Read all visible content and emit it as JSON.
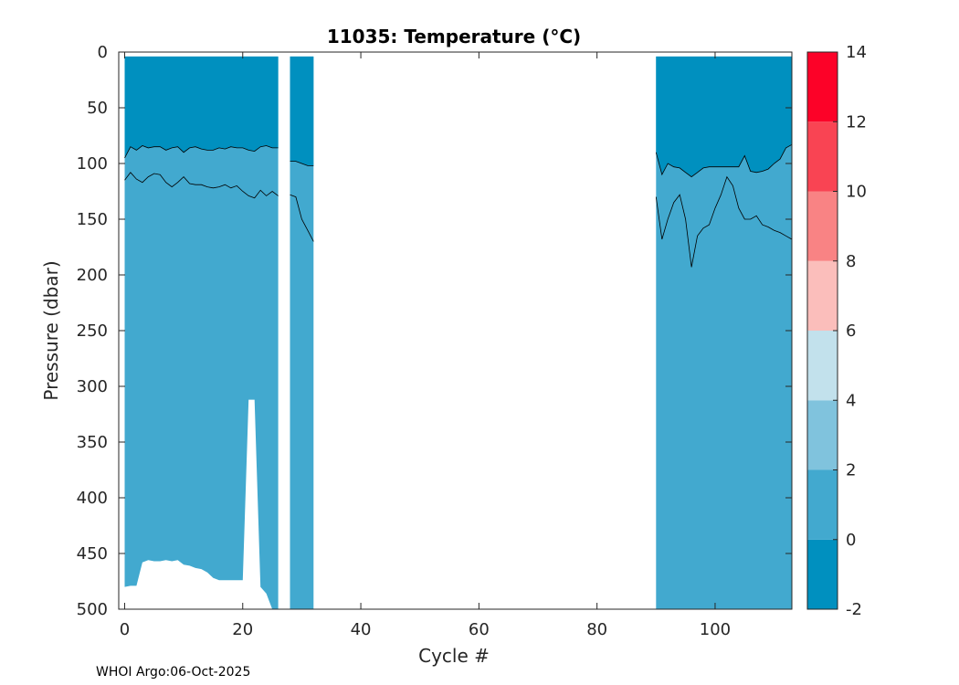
{
  "chart_data": {
    "type": "heatmap",
    "title": "11035:  Temperature (°C)",
    "xlabel": "Cycle #",
    "ylabel": "Pressure (dbar)",
    "xlim": [
      -1,
      113
    ],
    "ylim": [
      500,
      0
    ],
    "xticks": [
      0,
      20,
      40,
      60,
      80,
      100
    ],
    "yticks": [
      0,
      50,
      100,
      150,
      200,
      250,
      300,
      350,
      400,
      450,
      500
    ],
    "colorbar": {
      "range": [
        -2,
        14
      ],
      "ticks": [
        -2,
        0,
        2,
        4,
        6,
        8,
        10,
        12,
        14
      ],
      "levels": [
        {
          "from": -2,
          "to": 0,
          "color": "#0090bf"
        },
        {
          "from": 0,
          "to": 2,
          "color": "#42a9cf"
        },
        {
          "from": 2,
          "to": 4,
          "color": "#80c3dd"
        },
        {
          "from": 4,
          "to": 6,
          "color": "#c2e1ec"
        },
        {
          "from": 6,
          "to": 8,
          "color": "#fbbebb"
        },
        {
          "from": 8,
          "to": 10,
          "color": "#f98384"
        },
        {
          "from": 10,
          "to": 12,
          "color": "#f94453"
        },
        {
          "from": 12,
          "to": 14,
          "color": "#fc0228"
        }
      ]
    },
    "data_blocks": [
      {
        "cycles": [
          0,
          26
        ],
        "surface_pressure": 4,
        "cold_layer_bottom": [
          [
            0,
            95
          ],
          [
            1,
            85
          ],
          [
            2,
            88
          ],
          [
            3,
            84
          ],
          [
            4,
            86
          ],
          [
            5,
            85
          ],
          [
            6,
            85
          ],
          [
            7,
            88
          ],
          [
            8,
            86
          ],
          [
            9,
            85
          ],
          [
            10,
            90
          ],
          [
            11,
            86
          ],
          [
            12,
            85
          ],
          [
            13,
            87
          ],
          [
            14,
            88
          ],
          [
            15,
            88
          ],
          [
            16,
            86
          ],
          [
            17,
            87
          ],
          [
            18,
            85
          ],
          [
            19,
            86
          ],
          [
            20,
            86
          ],
          [
            21,
            88
          ],
          [
            22,
            89
          ],
          [
            23,
            85
          ],
          [
            24,
            84
          ],
          [
            25,
            86
          ],
          [
            26,
            86
          ]
        ],
        "zero_isotherm": [
          [
            0,
            115
          ],
          [
            1,
            108
          ],
          [
            2,
            114
          ],
          [
            3,
            117
          ],
          [
            4,
            112
          ],
          [
            5,
            109
          ],
          [
            6,
            110
          ],
          [
            7,
            117
          ],
          [
            8,
            121
          ],
          [
            9,
            117
          ],
          [
            10,
            112
          ],
          [
            11,
            118
          ],
          [
            12,
            119
          ],
          [
            13,
            119
          ],
          [
            14,
            121
          ],
          [
            15,
            122
          ],
          [
            16,
            121
          ],
          [
            17,
            119
          ],
          [
            18,
            122
          ],
          [
            19,
            120
          ],
          [
            20,
            125
          ],
          [
            21,
            129
          ],
          [
            22,
            131
          ],
          [
            23,
            124
          ],
          [
            24,
            129
          ],
          [
            25,
            125
          ],
          [
            26,
            129
          ]
        ],
        "bottom_profile": [
          [
            0,
            480
          ],
          [
            1,
            479
          ],
          [
            2,
            479
          ],
          [
            3,
            458
          ],
          [
            4,
            456
          ],
          [
            5,
            457
          ],
          [
            6,
            457
          ],
          [
            7,
            456
          ],
          [
            8,
            457
          ],
          [
            9,
            456
          ],
          [
            10,
            460
          ],
          [
            11,
            461
          ],
          [
            12,
            463
          ],
          [
            13,
            464
          ],
          [
            14,
            467
          ],
          [
            15,
            472
          ],
          [
            16,
            474
          ],
          [
            17,
            474
          ],
          [
            18,
            474
          ],
          [
            19,
            474
          ],
          [
            20,
            474
          ],
          [
            21,
            312
          ],
          [
            22,
            312
          ],
          [
            23,
            480
          ],
          [
            24,
            486
          ],
          [
            25,
            500
          ],
          [
            26,
            500
          ]
        ]
      },
      {
        "cycles": [
          28,
          32
        ],
        "surface_pressure": 4,
        "cold_layer_bottom": [
          [
            28,
            98
          ],
          [
            29,
            98
          ],
          [
            30,
            100
          ],
          [
            31,
            102
          ],
          [
            32,
            102
          ]
        ],
        "zero_isotherm": [
          [
            28,
            128
          ],
          [
            29,
            130
          ],
          [
            30,
            150
          ],
          [
            31,
            160
          ],
          [
            32,
            170
          ]
        ],
        "bottom_profile": [
          [
            28,
            500
          ],
          [
            32,
            500
          ]
        ]
      },
      {
        "cycles": [
          90,
          113
        ],
        "surface_pressure": 4,
        "cold_layer_bottom": [
          [
            90,
            90
          ],
          [
            91,
            110
          ],
          [
            92,
            100
          ],
          [
            93,
            103
          ],
          [
            94,
            104
          ],
          [
            95,
            108
          ],
          [
            96,
            112
          ],
          [
            97,
            108
          ],
          [
            98,
            104
          ],
          [
            99,
            103
          ],
          [
            100,
            103
          ],
          [
            101,
            103
          ],
          [
            102,
            103
          ],
          [
            103,
            103
          ],
          [
            104,
            103
          ],
          [
            105,
            93
          ],
          [
            106,
            107
          ],
          [
            107,
            108
          ],
          [
            108,
            107
          ],
          [
            109,
            105
          ],
          [
            110,
            100
          ],
          [
            111,
            96
          ],
          [
            112,
            86
          ],
          [
            113,
            83
          ]
        ],
        "zero_isotherm": [
          [
            90,
            130
          ],
          [
            91,
            168
          ],
          [
            92,
            150
          ],
          [
            93,
            135
          ],
          [
            94,
            128
          ],
          [
            95,
            150
          ],
          [
            96,
            193
          ],
          [
            97,
            165
          ],
          [
            98,
            158
          ],
          [
            99,
            155
          ],
          [
            100,
            140
          ],
          [
            101,
            128
          ],
          [
            102,
            112
          ],
          [
            103,
            120
          ],
          [
            104,
            140
          ],
          [
            105,
            150
          ],
          [
            106,
            150
          ],
          [
            107,
            147
          ],
          [
            108,
            155
          ],
          [
            109,
            157
          ],
          [
            110,
            160
          ],
          [
            111,
            162
          ],
          [
            112,
            165
          ],
          [
            113,
            168
          ]
        ],
        "bottom_profile": [
          [
            90,
            500
          ],
          [
            113,
            500
          ]
        ]
      }
    ]
  },
  "footer": {
    "credit": "WHOI Argo:06-Oct-2025"
  }
}
